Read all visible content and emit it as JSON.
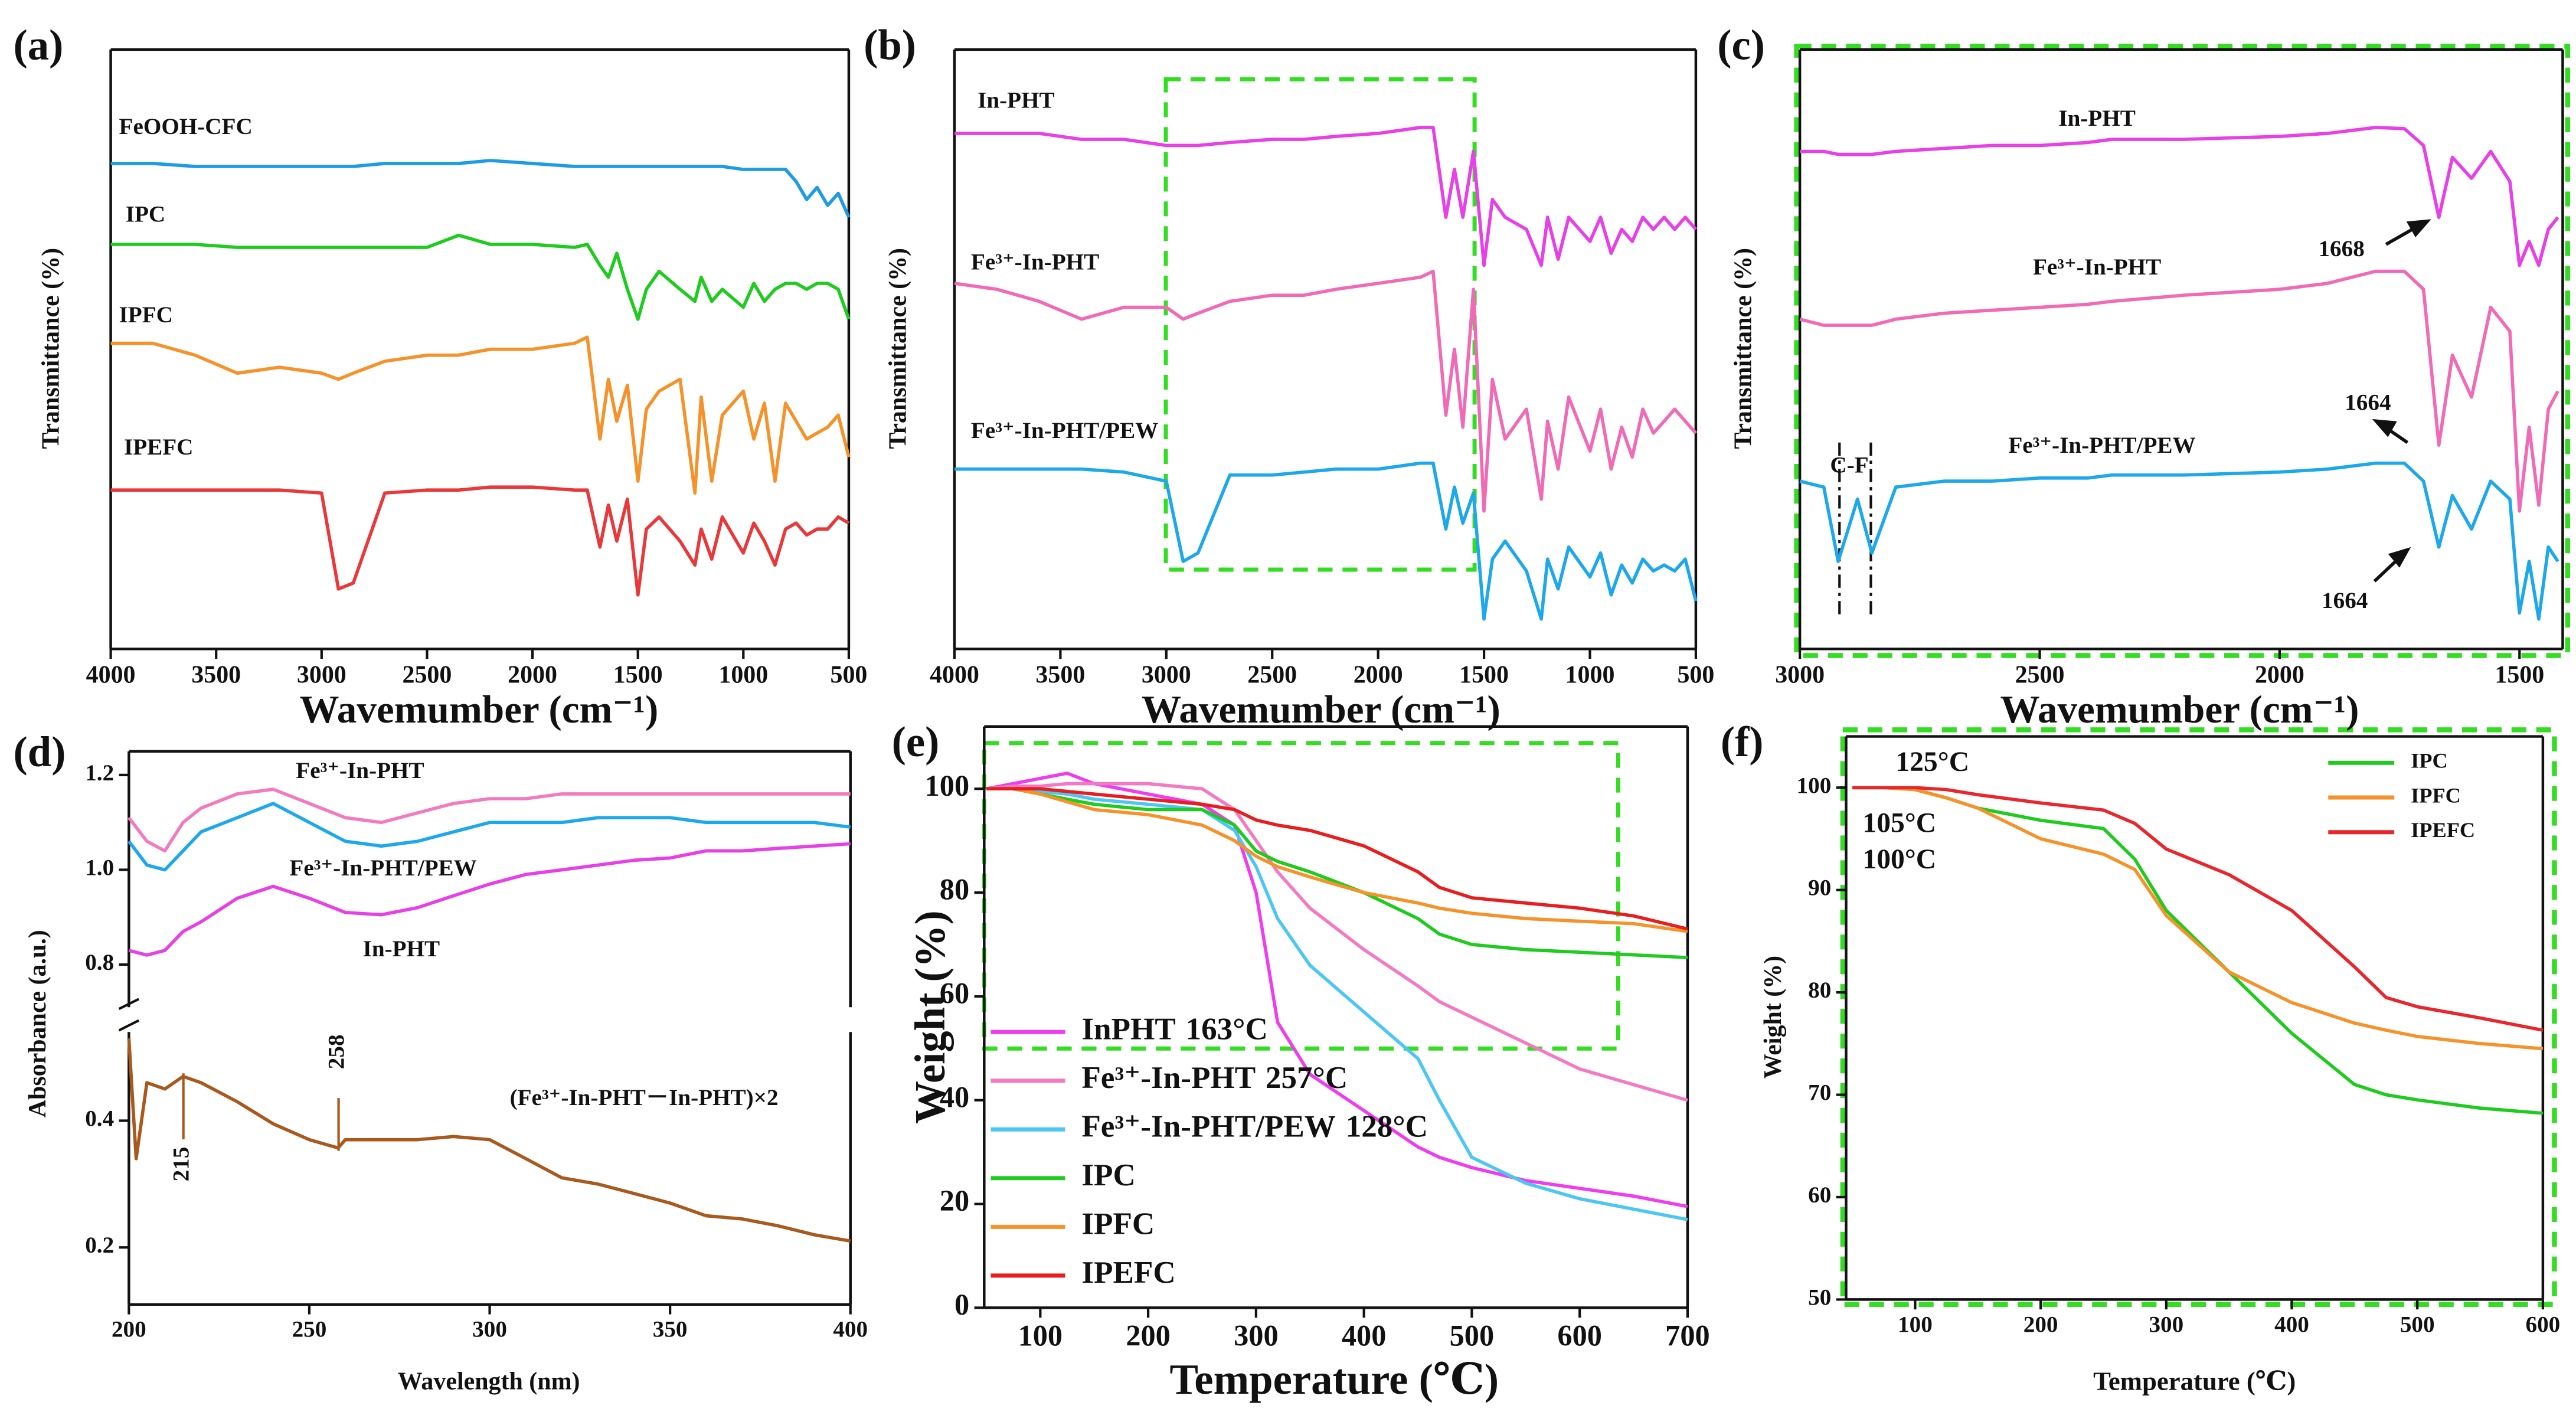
{
  "chart_data": [
    {
      "type": "line",
      "label": "(a)",
      "xlabel": "Wavemumber (cm⁻¹)",
      "ylabel": "Transmittance (%)",
      "xlim": [
        4000,
        500
      ],
      "xticks": [
        4000,
        3500,
        3000,
        2500,
        2000,
        1500,
        1000,
        500
      ],
      "ylim": [
        0,
        100
      ],
      "x": [
        4000,
        3800,
        3600,
        3400,
        3200,
        3000,
        2920,
        2850,
        2700,
        2500,
        2350,
        2200,
        2000,
        1800,
        1740,
        1680,
        1640,
        1600,
        1550,
        1500,
        1460,
        1400,
        1300,
        1230,
        1200,
        1150,
        1100,
        1000,
        950,
        900,
        850,
        800,
        750,
        700,
        650,
        600,
        550,
        500
      ],
      "series": [
        {
          "name": "FeOOH-CFC",
          "color": "#1e9be6",
          "values": [
            81,
            81,
            80.5,
            80.5,
            80.5,
            80.5,
            80.5,
            80.5,
            81,
            81,
            81,
            81.5,
            81,
            80.5,
            80.5,
            80.5,
            80.5,
            80.5,
            80.5,
            80.5,
            80.5,
            80.5,
            80.5,
            80.5,
            80.5,
            80.5,
            80.5,
            80,
            80,
            80,
            80,
            80,
            78,
            75,
            77,
            74,
            76,
            72
          ]
        },
        {
          "name": "IPC",
          "color": "#1ecb1e",
          "values": [
            67.5,
            67.5,
            67.5,
            67,
            67,
            67,
            67,
            67,
            67,
            67,
            69,
            67.5,
            67.5,
            67,
            67.5,
            64,
            62,
            66,
            60,
            55,
            60,
            63,
            60,
            58,
            62,
            58,
            60,
            57,
            61,
            58,
            60,
            61,
            61,
            60,
            61,
            61,
            60,
            55
          ]
        },
        {
          "name": "IPFC",
          "color": "#f5922a",
          "values": [
            51,
            51,
            49,
            46,
            47,
            46,
            45,
            46,
            48,
            49,
            49,
            50,
            50,
            51,
            52,
            35,
            45,
            38,
            44,
            28,
            40,
            43,
            45,
            26,
            42,
            28,
            39,
            43,
            35,
            41,
            28,
            41,
            38,
            35,
            36,
            37,
            39,
            32
          ]
        },
        {
          "name": "IPEFC",
          "color": "#e8383a",
          "values": [
            26.5,
            26.5,
            26.5,
            26.5,
            26.5,
            26,
            10,
            11,
            26,
            26.5,
            26.5,
            27,
            27,
            26.5,
            26.5,
            17,
            24,
            18,
            25,
            9,
            20,
            22,
            18,
            14,
            20,
            15,
            22,
            16,
            21,
            18,
            14,
            20,
            21,
            19,
            20,
            20,
            22,
            21
          ]
        }
      ]
    },
    {
      "type": "line",
      "label": "(b)",
      "xlabel": "Wavemumber (cm⁻¹)",
      "ylabel": "Transmittance (%)",
      "xlim": [
        4000,
        500
      ],
      "xticks": [
        4000,
        3500,
        3000,
        2500,
        2000,
        1500,
        1000,
        500
      ],
      "ylim": [
        0,
        100
      ],
      "x": [
        4000,
        3800,
        3600,
        3400,
        3200,
        3000,
        2920,
        2850,
        2700,
        2500,
        2350,
        2200,
        2000,
        1800,
        1740,
        1680,
        1640,
        1600,
        1550,
        1500,
        1460,
        1400,
        1300,
        1230,
        1200,
        1150,
        1100,
        1000,
        950,
        900,
        850,
        800,
        750,
        700,
        650,
        600,
        550,
        500
      ],
      "series": [
        {
          "name": "In-PHT",
          "color": "#e640e6",
          "values": [
            86,
            86,
            86,
            85,
            85,
            84,
            84,
            84,
            84.5,
            85,
            85,
            85.5,
            86,
            87,
            87,
            72,
            80,
            72,
            83,
            64,
            75,
            72,
            70,
            64,
            72,
            65,
            72,
            68,
            72,
            66,
            70,
            68,
            72,
            70,
            72,
            70,
            72,
            70
          ]
        },
        {
          "name": "Fe³⁺-In-PHT",
          "color": "#f06ab6",
          "values": [
            61,
            60,
            58,
            55,
            57,
            57,
            55,
            56,
            58,
            59,
            59,
            60,
            61,
            62,
            63,
            39,
            50,
            37,
            60,
            23,
            45,
            35,
            40,
            25,
            38,
            30,
            42,
            33,
            40,
            30,
            37,
            32,
            40,
            36,
            38,
            40,
            38,
            36
          ]
        },
        {
          "name": "Fe³⁺-In-PHT/PEW",
          "color": "#1ea8ec",
          "values": [
            30,
            30,
            30,
            30,
            29.5,
            28,
            14.6,
            16,
            29,
            29,
            29.5,
            30,
            30,
            31,
            31,
            20,
            27,
            21,
            26,
            5,
            15,
            18,
            13,
            5,
            15,
            10,
            17,
            12,
            16,
            9,
            14,
            11,
            15,
            13,
            14,
            13,
            15,
            8
          ]
        }
      ]
    },
    {
      "type": "line",
      "label": "(c)",
      "xlabel": "Wavemumber (cm⁻¹)",
      "ylabel": "Transmittance (%)",
      "xlim": [
        3000,
        1410
      ],
      "xticks": [
        3000,
        2500,
        2000,
        1500
      ],
      "ylim": [
        0,
        100
      ],
      "x": [
        3000,
        2950,
        2920,
        2880,
        2850,
        2800,
        2700,
        2600,
        2500,
        2400,
        2350,
        2200,
        2000,
        1900,
        1800,
        1740,
        1700,
        1668,
        1640,
        1600,
        1560,
        1520,
        1500,
        1480,
        1460,
        1440,
        1420
      ],
      "series": [
        {
          "name": "In-PHT",
          "color": "#e640e6",
          "values": [
            83,
            83,
            82.5,
            82.5,
            82.5,
            83,
            83.5,
            84,
            84,
            84.5,
            85,
            85,
            85.5,
            86,
            87,
            86.8,
            84,
            72,
            82,
            78.5,
            83,
            78,
            64,
            68,
            64,
            70,
            72
          ]
        },
        {
          "name": "Fe³⁺-In-PHT",
          "color": "#f06ab6",
          "values": [
            55,
            54,
            54,
            54,
            54,
            55,
            56,
            56.5,
            57,
            57.5,
            58,
            59,
            60,
            61,
            63,
            63,
            60,
            34,
            49,
            42,
            57,
            53,
            23,
            37,
            24,
            40,
            43
          ]
        },
        {
          "name": "Fe³⁺-In-PHT/PEW",
          "color": "#1ea8ec",
          "values": [
            28,
            27,
            14.6,
            25,
            16,
            27,
            28,
            28,
            28.5,
            28.5,
            29,
            29,
            29.5,
            30,
            31,
            31,
            28,
            17,
            25.6,
            20,
            28,
            25,
            6,
            14.6,
            5,
            17,
            14.6
          ]
        }
      ],
      "annotations": [
        {
          "text": "1668"
        },
        {
          "text": "1664"
        },
        {
          "text": "1664"
        },
        {
          "text": "C-F"
        }
      ]
    },
    {
      "type": "line",
      "label": "(d)",
      "xlim": [
        200,
        400
      ],
      "ylim": [
        0.71,
        1.25
      ],
      "yticks": [
        0.8,
        {
          "value": 1,
          "label": "1.0"
        },
        1.2
      ],
      "x": [
        200,
        205,
        210,
        215,
        220,
        230,
        240,
        250,
        260,
        270,
        280,
        290,
        300,
        310,
        320,
        330,
        340,
        350,
        360,
        370,
        380,
        390,
        400
      ],
      "series": [
        {
          "name": "Fe³⁺-In-PHT",
          "color": "#f27bbf",
          "values": [
            1.11,
            1.06,
            1.04,
            1.1,
            1.13,
            1.16,
            1.17,
            1.14,
            1.11,
            1.1,
            1.12,
            1.14,
            1.15,
            1.15,
            1.16,
            1.16,
            1.16,
            1.16,
            1.16,
            1.16,
            1.16,
            1.16,
            1.16
          ]
        },
        {
          "name": "Fe³⁺-In-PHT/PEW",
          "color": "#1ea8ec",
          "values": [
            1.06,
            1.01,
            1.0,
            1.04,
            1.08,
            1.11,
            1.14,
            1.1,
            1.06,
            1.05,
            1.06,
            1.08,
            1.1,
            1.1,
            1.1,
            1.11,
            1.11,
            1.11,
            1.1,
            1.1,
            1.1,
            1.1,
            1.09
          ]
        },
        {
          "name": "In-PHT",
          "color": "#e640e6",
          "values": [
            0.83,
            0.82,
            0.83,
            0.87,
            0.89,
            0.94,
            0.965,
            0.94,
            0.91,
            0.905,
            0.92,
            0.945,
            0.97,
            0.99,
            1.0,
            1.01,
            1.02,
            1.025,
            1.04,
            1.04,
            1.045,
            1.05,
            1.055
          ]
        }
      ]
    },
    {
      "type": "line",
      "xlabel": "Wavelength (nm)",
      "ylabel": "Absorbance (a.u.)",
      "xlim": [
        200,
        400
      ],
      "xticks": [
        200,
        250,
        300,
        350,
        400
      ],
      "ylim": [
        0.11,
        0.54
      ],
      "yticks": [
        0.2,
        0.4
      ],
      "x": [
        200,
        202,
        205,
        210,
        215,
        220,
        230,
        240,
        250,
        258,
        260,
        270,
        280,
        290,
        300,
        310,
        320,
        330,
        340,
        350,
        360,
        370,
        380,
        390,
        400
      ],
      "series": [
        {
          "name": "(Fe³⁺-In-PHT－In-PHT)×2",
          "color": "#a85a1e",
          "values": [
            0.53,
            0.34,
            0.46,
            0.45,
            0.47,
            0.46,
            0.43,
            0.395,
            0.37,
            0.357,
            0.37,
            0.37,
            0.37,
            0.375,
            0.37,
            0.34,
            0.31,
            0.3,
            0.285,
            0.27,
            0.25,
            0.245,
            0.234,
            0.22,
            0.21
          ]
        }
      ],
      "annotations": [
        {
          "text": "215"
        },
        {
          "text": "258"
        }
      ]
    },
    {
      "type": "line",
      "label": "(e)",
      "xlabel": "Temperature (℃)",
      "ylabel": "Weight (%)",
      "xlim": [
        48,
        700
      ],
      "xticks": [
        100,
        200,
        300,
        400,
        500,
        600,
        700
      ],
      "ylim": [
        0,
        112
      ],
      "yticks": [
        0,
        20,
        40,
        60,
        80,
        100
      ],
      "legend": "lower left",
      "x": [
        50,
        75,
        100,
        125,
        150,
        200,
        250,
        280,
        300,
        320,
        350,
        400,
        450,
        470,
        500,
        550,
        600,
        650,
        700
      ],
      "series": [
        {
          "name": "InPHT",
          "onset": "163°C",
          "color": "#ee3cee",
          "values": [
            100,
            101,
            102,
            103,
            101,
            99,
            97,
            93,
            80,
            55,
            45,
            38,
            31,
            29,
            27,
            24.5,
            23,
            21.5,
            19.5
          ]
        },
        {
          "name": "Fe³⁺-In-PHT",
          "onset": "257°C",
          "color": "#f37ac2",
          "values": [
            100,
            100.5,
            100.5,
            101,
            101,
            101,
            100,
            96,
            90,
            84,
            77,
            69,
            62,
            59,
            56,
            51,
            46,
            43,
            40
          ]
        },
        {
          "name": "Fe³⁺-In-PHT/PEW",
          "onset": "128°C",
          "color": "#4cc6f2",
          "values": [
            100,
            100,
            99.5,
            99,
            98,
            97,
            96,
            92,
            85,
            75,
            66,
            57,
            48,
            40,
            29,
            24,
            21,
            19,
            17
          ]
        },
        {
          "name": "IPC",
          "color": "#1ecb1e",
          "values": [
            100,
            100,
            99,
            98,
            97,
            96,
            96,
            93,
            88,
            86,
            84,
            80,
            75,
            72,
            70,
            69,
            68.5,
            68,
            67.5
          ]
        },
        {
          "name": "IPFC",
          "color": "#f5922a",
          "values": [
            100,
            100,
            99,
            97.5,
            96,
            95,
            93,
            90,
            87,
            85,
            83,
            80,
            78,
            77,
            76,
            75,
            74.5,
            74,
            72.5
          ]
        },
        {
          "name": "IPEFC",
          "color": "#e81e1e",
          "values": [
            100,
            100,
            100,
            99.5,
            99,
            98,
            97,
            96,
            94,
            93,
            92,
            89,
            84,
            81,
            79,
            78,
            77,
            75.5,
            73
          ]
        }
      ]
    },
    {
      "type": "line",
      "label": "(f)",
      "xlabel": "Temperature (℃)",
      "ylabel": "Weight (%)",
      "xlim": [
        45,
        600
      ],
      "xticks": [
        100,
        200,
        300,
        400,
        500,
        600
      ],
      "ylim": [
        50,
        105
      ],
      "yticks": [
        50,
        60,
        70,
        80,
        90,
        100
      ],
      "legend": "upper right",
      "x": [
        50,
        75,
        100,
        125,
        150,
        200,
        250,
        275,
        300,
        350,
        400,
        450,
        475,
        500,
        550,
        600
      ],
      "series": [
        {
          "name": "IPC",
          "color": "#1ecb1e",
          "values": [
            100,
            100,
            99.8,
            99,
            98,
            96.8,
            96,
            93,
            88,
            82,
            76,
            71,
            70,
            69.5,
            68.7,
            68.2
          ]
        },
        {
          "name": "IPFC",
          "color": "#f5922a",
          "values": [
            100,
            100,
            99.8,
            99,
            98,
            95,
            93.5,
            92,
            87.5,
            82,
            79,
            77,
            76.3,
            75.7,
            75,
            74.5
          ]
        },
        {
          "name": "IPEFC",
          "color": "#e8262b",
          "values": [
            100,
            100,
            100,
            99.8,
            99.3,
            98.5,
            97.8,
            96.5,
            94,
            91.5,
            88,
            82.5,
            79.5,
            78.6,
            77.5,
            76.3
          ]
        }
      ],
      "annotations": [
        {
          "text": "125°C",
          "color": "#e8262b"
        },
        {
          "text": "105°C",
          "color": "#f5922a"
        },
        {
          "text": "100°C",
          "color": "#1ecb1e"
        }
      ]
    }
  ]
}
